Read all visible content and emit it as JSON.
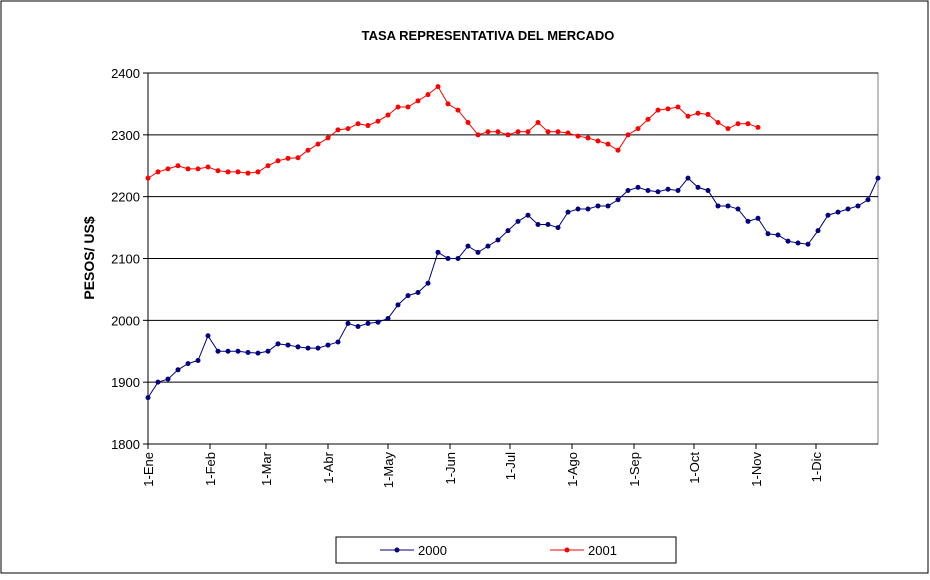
{
  "chart_data": {
    "type": "line",
    "title": "TASA REPRESENTATIVA DEL MERCADO",
    "y_label": "PESOS/ US$",
    "x": [
      0,
      5,
      10,
      15,
      20,
      25,
      30,
      35,
      40,
      45,
      50,
      55,
      60,
      65,
      70,
      75,
      80,
      85,
      90,
      95,
      100,
      105,
      110,
      115,
      120,
      125,
      130,
      135,
      140,
      145,
      150,
      155,
      160,
      165,
      170,
      175,
      180,
      185,
      190,
      195,
      200,
      205,
      210,
      215,
      220,
      225,
      230,
      235,
      240,
      245,
      250,
      255,
      260,
      265,
      270,
      275,
      280,
      285,
      290,
      295,
      300,
      305,
      310,
      315,
      320,
      325,
      330,
      335,
      340,
      345,
      350,
      355,
      360,
      365
    ],
    "xlim": [
      0,
      365
    ],
    "xticks": [
      {
        "value": 0,
        "label": "1-Ene"
      },
      {
        "value": 31,
        "label": "1-Feb"
      },
      {
        "value": 59,
        "label": "1-Mar"
      },
      {
        "value": 90,
        "label": "1-Abr"
      },
      {
        "value": 120,
        "label": "1-May"
      },
      {
        "value": 151,
        "label": "1-Jun"
      },
      {
        "value": 181,
        "label": "1-Jul"
      },
      {
        "value": 212,
        "label": "1-Ago"
      },
      {
        "value": 243,
        "label": "1-Sep"
      },
      {
        "value": 273,
        "label": "1-Oct"
      },
      {
        "value": 304,
        "label": "1-Nov"
      },
      {
        "value": 334,
        "label": "1-Dic"
      }
    ],
    "ylim": [
      1800,
      2400
    ],
    "yticks": [
      1800,
      1900,
      2000,
      2100,
      2200,
      2300,
      2400
    ],
    "grid": true,
    "legend": "bottom",
    "series": [
      {
        "name": "2000",
        "color": "#000080",
        "values": [
          1875,
          1900,
          1905,
          1920,
          1930,
          1935,
          1975,
          1950,
          1950,
          1950,
          1948,
          1947,
          1950,
          1962,
          1960,
          1957,
          1955,
          1955,
          1960,
          1965,
          1995,
          1990,
          1995,
          1997,
          2003,
          2025,
          2040,
          2045,
          2060,
          2110,
          2100,
          2100,
          2120,
          2110,
          2120,
          2130,
          2145,
          2160,
          2170,
          2155,
          2155,
          2150,
          2175,
          2180,
          2180,
          2185,
          2185,
          2195,
          2210,
          2215,
          2210,
          2208,
          2212,
          2210,
          2230,
          2215,
          2210,
          2185,
          2185,
          2180,
          2160,
          2165,
          2140,
          2138,
          2128,
          2125,
          2123,
          2145,
          2170,
          2175,
          2180,
          2185,
          2195,
          2230
        ]
      },
      {
        "name": "2001",
        "color": "#ff0000",
        "values": [
          2230,
          2240,
          2245,
          2250,
          2245,
          2245,
          2248,
          2242,
          2240,
          2240,
          2238,
          2240,
          2250,
          2258,
          2262,
          2263,
          2275,
          2285,
          2295,
          2308,
          2310,
          2318,
          2315,
          2322,
          2332,
          2345,
          2345,
          2355,
          2365,
          2378,
          2350,
          2340,
          2320,
          2300,
          2305,
          2305,
          2300,
          2305,
          2305,
          2320,
          2305,
          2305,
          2303,
          2298,
          2295,
          2290,
          2285,
          2275,
          2300,
          2310,
          2325,
          2340,
          2342,
          2345,
          2330,
          2335,
          2333,
          2320,
          2310,
          2318,
          2318,
          2312,
          null,
          null,
          null,
          null,
          null,
          null,
          null,
          null,
          null,
          null,
          null,
          null
        ]
      }
    ]
  }
}
